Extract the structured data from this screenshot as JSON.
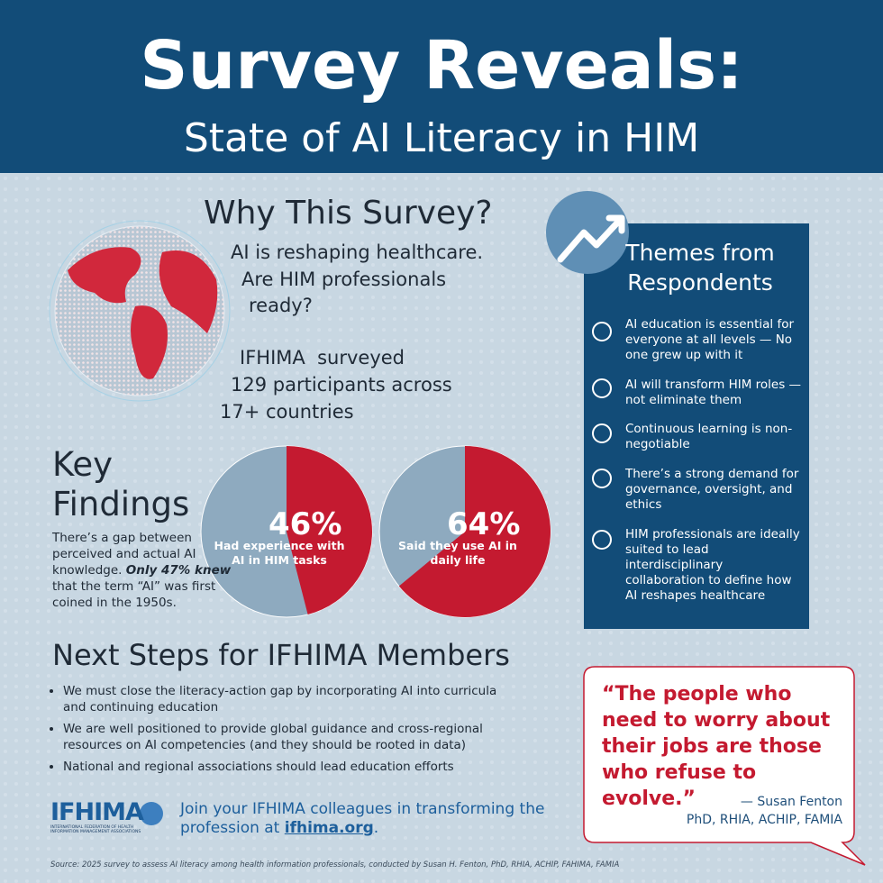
{
  "header": {
    "title": "Survey Reveals:",
    "subtitle": "State of AI Literacy in HIM"
  },
  "why": {
    "heading": "Why This Survey?",
    "question_lines": [
      "AI is reshaping healthcare.",
      "Are HIM professionals",
      "ready?"
    ],
    "survey_lines": [
      "IFHIMA  surveyed",
      "129 participants across",
      "17+ countries"
    ]
  },
  "key_findings": {
    "heading": "Key Findings",
    "text": [
      "There’s a gap between perceived and actual AI knowledge. ",
      "Only 47% knew",
      " that the term “AI” was first coined in the 1950s."
    ],
    "pies": [
      {
        "value": 46,
        "value_label": "46%",
        "label": "Had experience with AI in HIM tasks",
        "color": "#c41a30",
        "rest_color": "#8eaabf"
      },
      {
        "value": 64,
        "value_label": "64%",
        "label": "Said they use AI in daily life",
        "color": "#c41a30",
        "rest_color": "#8eaabf"
      }
    ]
  },
  "themes": {
    "title": "Themes from Respondents",
    "items": [
      "AI education is essential for everyone at all levels — No one grew up with it",
      "AI will transform HIM roles — not eliminate them",
      "Continuous learning is non-negotiable",
      "There’s a strong demand for governance, oversight, and ethics",
      "HIM professionals are ideally suited to lead interdisciplinary collaboration to define how AI reshapes healthcare"
    ]
  },
  "next_steps": {
    "heading": "Next Steps for IFHIMA Members",
    "items": [
      "We must close the literacy-action gap by incorporating AI into curricula and continuing education",
      "We are well positioned to provide global guidance and cross-regional resources on AI competencies (and they should be rooted in data)",
      "National and regional associations should lead education efforts"
    ]
  },
  "quote": {
    "text": "“The people who need to worry about their jobs are those who refuse to evolve.”",
    "author": "— Susan Fenton",
    "credentials": "PhD, RHIA, ACHIP, FAMIA"
  },
  "footer": {
    "logo": "IFHIMA",
    "logo_subtitle": "INTERNATIONAL FEDERATION OF HEALTH INFORMATION MANAGEMENT ASSOCIATIONS",
    "join": [
      "Join your IFHIMA colleagues in transforming the profession at ",
      "ifhima.org",
      "."
    ],
    "source": "Source: 2025 survey to assess AI literacy among health information professionals, conducted by Susan H. Fenton, PhD, RHIA, ACHIP, FAHIMA, FAMIA"
  }
}
